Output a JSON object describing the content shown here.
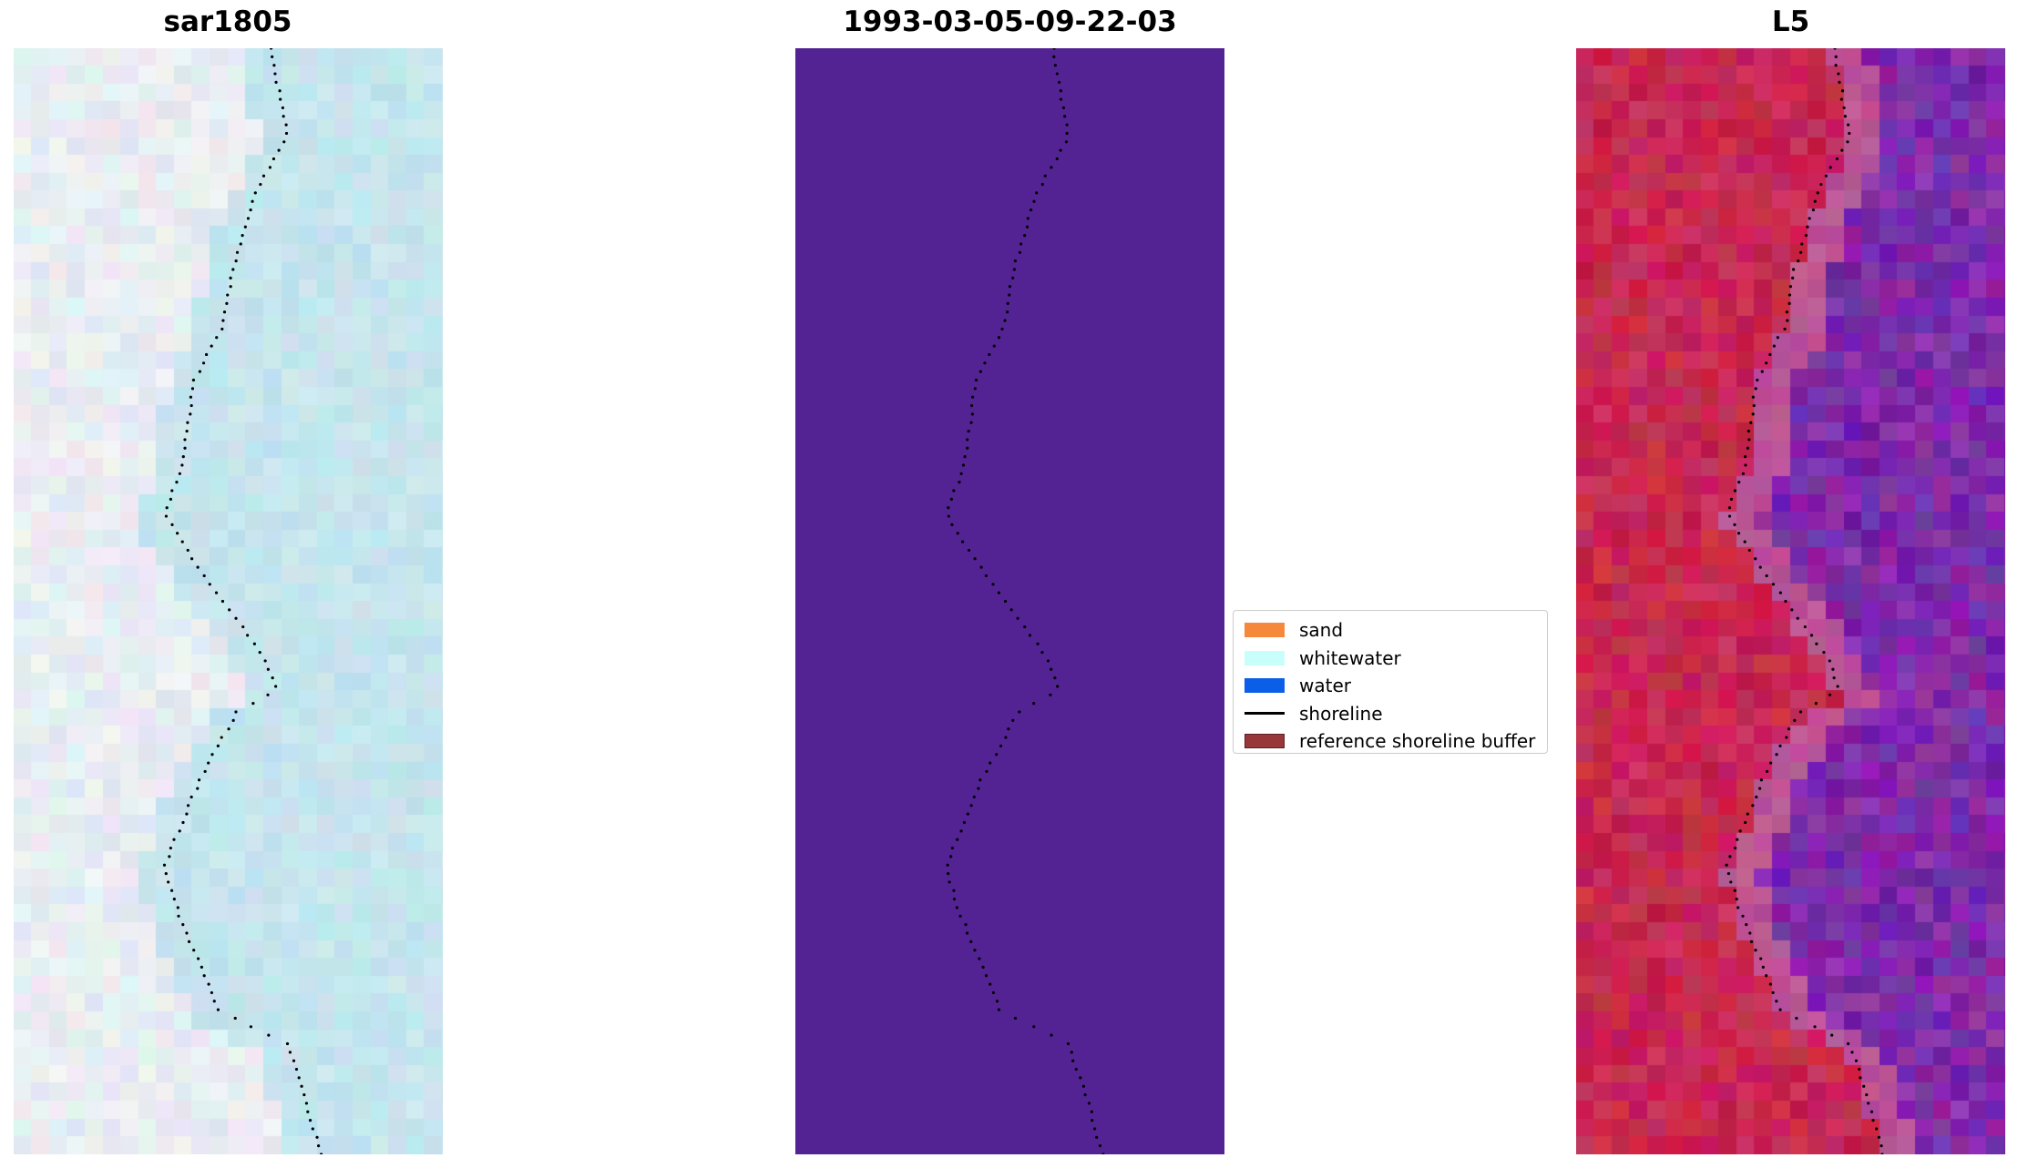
{
  "panels": [
    {
      "title": "sar1805",
      "content": "rgb-image"
    },
    {
      "title": "1993-03-05-09-22-03",
      "content": "classified-image"
    },
    {
      "title": "L5",
      "content": "index-image"
    }
  ],
  "legend": {
    "items": [
      {
        "label": "sand",
        "color": "#f5883a",
        "kind": "patch"
      },
      {
        "label": "whitewater",
        "color": "#c9fffb",
        "kind": "patch"
      },
      {
        "label": "water",
        "color": "#0a5ee8",
        "kind": "patch"
      },
      {
        "label": "shoreline",
        "color": "#000000",
        "kind": "line"
      },
      {
        "label": "reference shoreline buffer",
        "color": "#98373a",
        "kind": "patch"
      }
    ]
  },
  "colors": {
    "classified_background": "#532394",
    "shoreline_dots": "#000000"
  }
}
